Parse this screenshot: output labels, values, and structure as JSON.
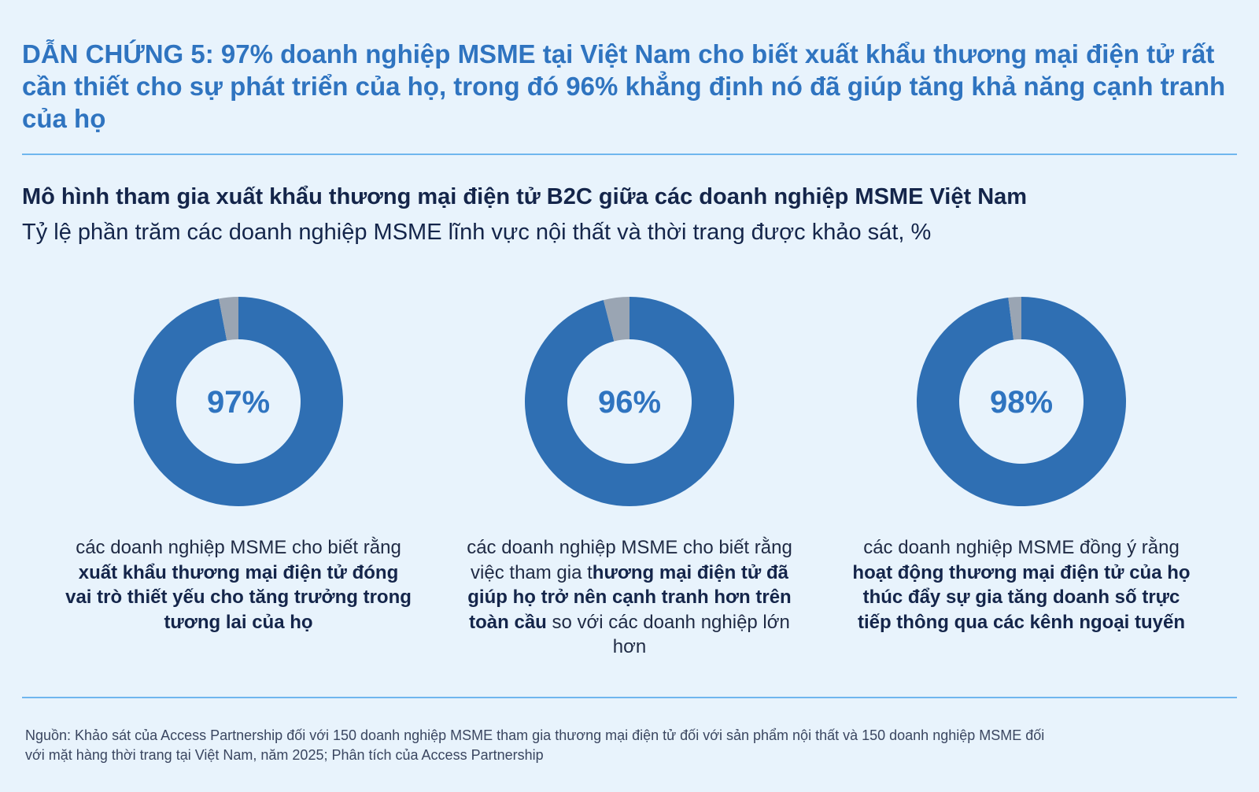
{
  "headline": "DẪN CHỨNG 5: 97% doanh nghiệp MSME tại Việt Nam cho biết xuất khẩu thương mại điện tử rất cần thiết cho sự phát triển của họ, trong đó 96% khẳng định nó đã giúp tăng khả năng cạnh tranh của họ",
  "colors": {
    "filled": "#2f6fb3",
    "remainder": "#9aa5b3",
    "accent": "#2f74c0"
  },
  "chart_data": {
    "type": "pie",
    "title": "Mô hình tham gia xuất khẩu thương mại điện tử B2C giữa các doanh nghiệp MSME Việt Nam",
    "subtitle": "Tỷ lệ phần trăm các doanh nghiệp MSME lĩnh vực nội thất và thời trang được khảo sát, %",
    "donuts": [
      {
        "value": 97,
        "label": "97%",
        "caption_pre": "các doanh nghiệp MSME cho biết rằng ",
        "caption_bold": "xuất khẩu thương mại điện tử đóng vai trò thiết yếu cho tăng trưởng trong tương lai của họ",
        "caption_post": ""
      },
      {
        "value": 96,
        "label": "96%",
        "caption_pre": "các doanh nghiệp MSME cho biết rằng việc tham gia t",
        "caption_bold": "hương mại điện tử đã giúp họ trở nên cạnh tranh hơn trên toàn cầu",
        "caption_post": " so với các doanh nghiệp lớn hơn"
      },
      {
        "value": 98,
        "label": "98%",
        "caption_pre": "các doanh nghiệp MSME đồng ý rằng ",
        "caption_bold": "hoạt động thương mại điện tử của họ thúc đẩy sự gia tăng doanh số trực tiếp thông qua các kênh ngoại tuyến",
        "caption_post": ""
      }
    ]
  },
  "source": "Nguồn: Khảo sát của Access Partnership đối với 150 doanh nghiệp MSME tham gia thương mại điện tử đối với sản phẩm nội thất và 150 doanh nghiệp MSME đối với mặt hàng thời trang tại Việt Nam, năm 2025; Phân tích của Access Partnership"
}
